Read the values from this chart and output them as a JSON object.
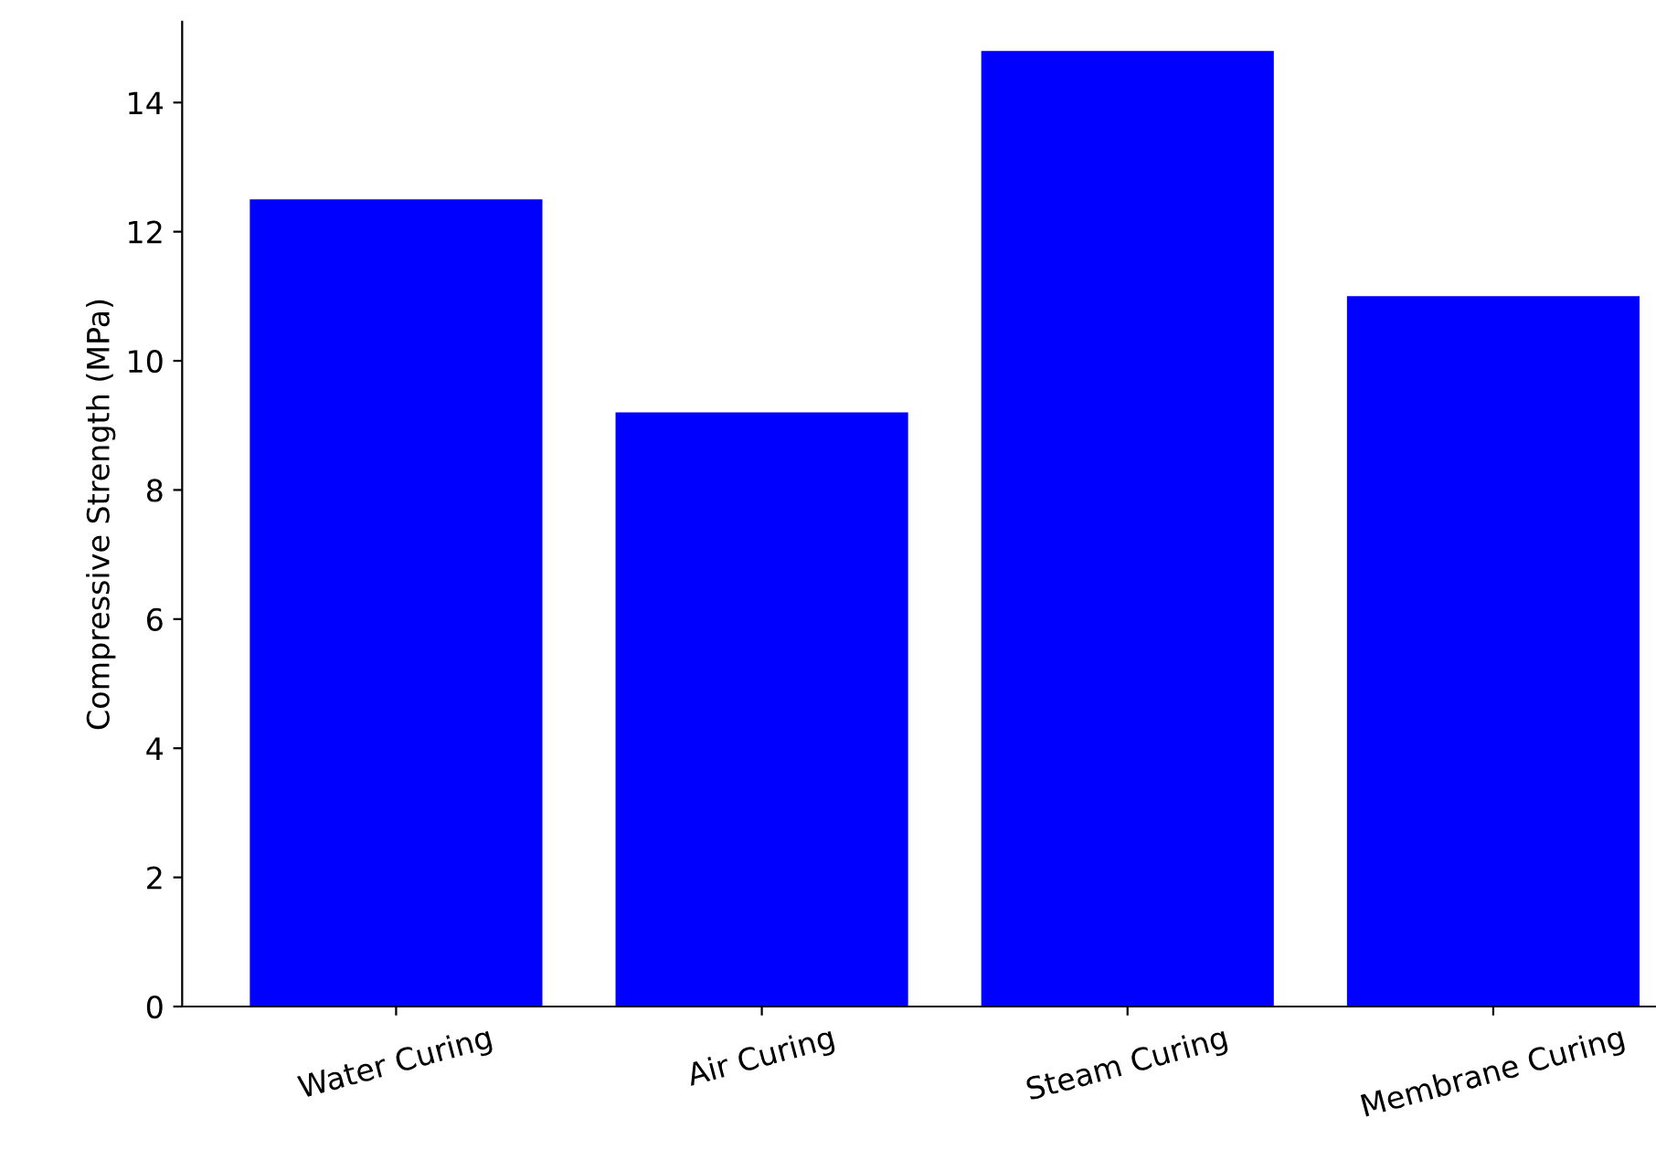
{
  "chart_data": {
    "type": "bar",
    "ylabel": "Compressive Strength (MPa)",
    "categories": [
      "Water Curing",
      "Air Curing",
      "Steam Curing",
      "Membrane Curing"
    ],
    "values": [
      12.5,
      9.2,
      14.8,
      11.0
    ],
    "color": "#0000ff",
    "ylim": [
      0,
      15.25
    ],
    "yticks": [
      0,
      2,
      4,
      6,
      8,
      10,
      12,
      14
    ],
    "grid": false
  }
}
